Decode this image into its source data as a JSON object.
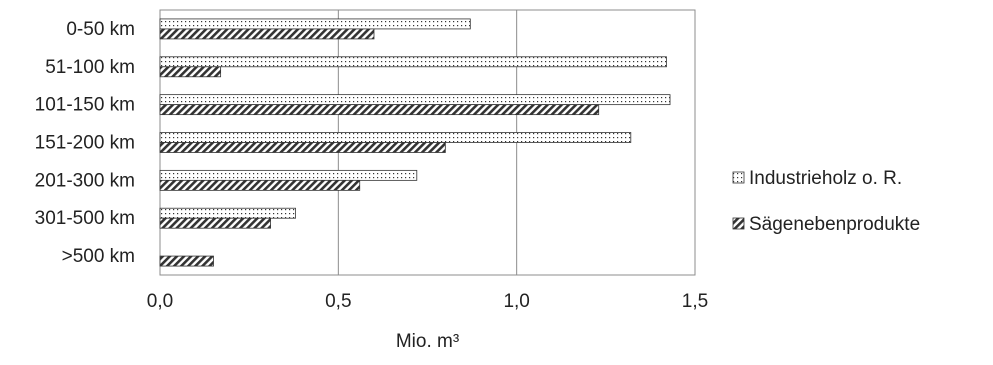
{
  "chart_data": {
    "type": "bar",
    "orientation": "horizontal",
    "categories": [
      "0-50 km",
      "51-100 km",
      "101-150 km",
      "151-200 km",
      "201-300 km",
      "301-500 km",
      ">500 km"
    ],
    "series": [
      {
        "name": "Industrieholz o. R.",
        "values": [
          0.87,
          1.42,
          1.43,
          1.32,
          0.72,
          0.38,
          0
        ],
        "pattern": "dots"
      },
      {
        "name": "Sägenebenprodukte",
        "values": [
          0.6,
          0.17,
          1.23,
          0.8,
          0.56,
          0.31,
          0.15
        ],
        "pattern": "hatch"
      }
    ],
    "xlabel": "Mio. m³",
    "ylabel": "",
    "xlim": [
      0,
      1.5
    ],
    "xticks": [
      "0,0",
      "0,5",
      "1,0",
      "1,5"
    ],
    "xtick_values": [
      0,
      0.5,
      1.0,
      1.5
    ],
    "grid": "vertical",
    "legend_position": "right",
    "colors": {
      "border": "#8c8c8c",
      "grid": "#8c8c8c",
      "bar_outline": "#333333",
      "fill": "#333333"
    }
  }
}
